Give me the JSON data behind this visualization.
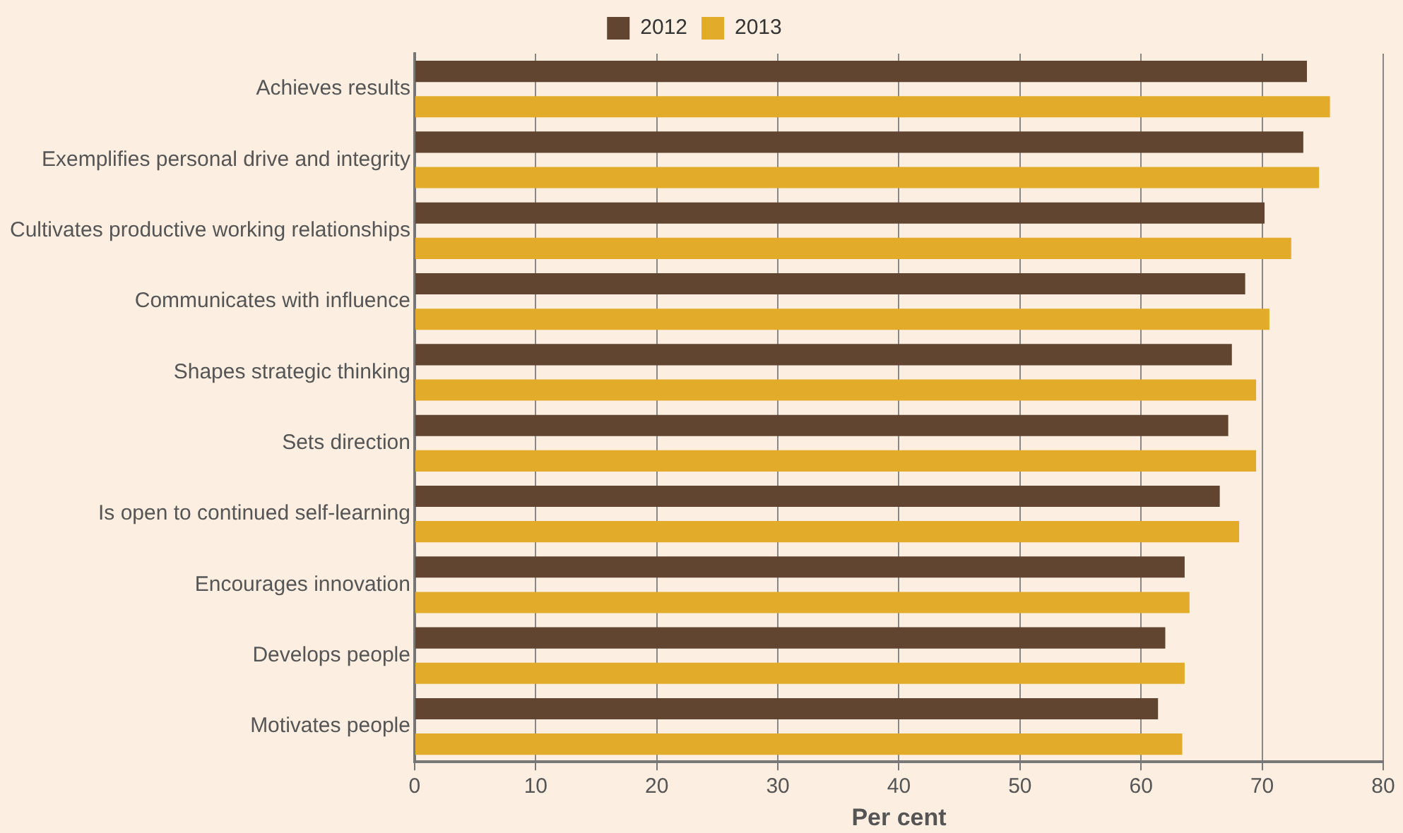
{
  "chart_data": {
    "type": "bar",
    "orientation": "horizontal",
    "xlabel": "Per cent",
    "categories": [
      "Achieves results",
      "Exemplifies personal drive and integrity",
      "Cultivates productive working relationships",
      "Communicates with influence",
      "Shapes strategic thinking",
      "Sets direction",
      "Is open to continued self-learning",
      "Encourages innovation",
      "Develops people",
      "Motivates people"
    ],
    "series": [
      {
        "name": "2012",
        "color": "#614530",
        "values": [
          73.7,
          73.4,
          70.2,
          68.6,
          67.5,
          67.2,
          66.5,
          63.6,
          62.0,
          61.4
        ]
      },
      {
        "name": "2013",
        "color": "#e2ac2a",
        "values": [
          75.6,
          74.7,
          72.4,
          70.6,
          69.5,
          69.5,
          68.1,
          64.0,
          63.6,
          63.4
        ]
      }
    ],
    "xlim": [
      0,
      80
    ],
    "xticks": [
      0,
      10,
      20,
      30,
      40,
      50,
      60,
      70,
      80
    ],
    "grid": "x",
    "legend": "top"
  }
}
